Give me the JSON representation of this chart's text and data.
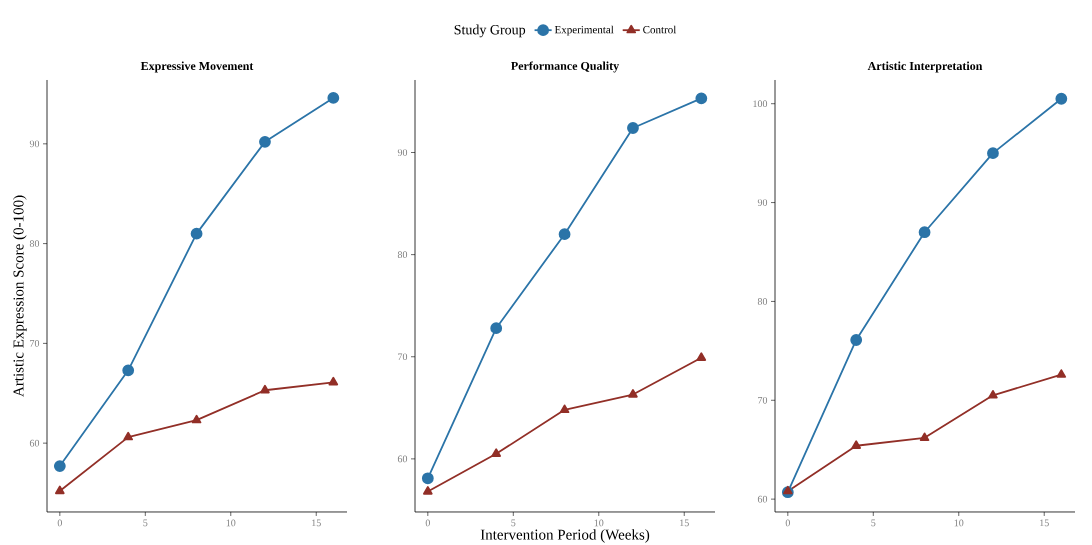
{
  "chart_data": [
    {
      "type": "line",
      "title": "Expressive Movement",
      "ylabel": "Artistic Expression Score (0-100)",
      "x": [
        0,
        4,
        8,
        12,
        16
      ],
      "xlim": [
        -0.75,
        16.8
      ],
      "xticks": [
        0,
        5,
        10,
        15
      ],
      "ylim": [
        53.1,
        96.4
      ],
      "yticks": [
        60,
        70,
        80,
        90
      ],
      "series": [
        {
          "color": "#2b74a8",
          "marker": "circle",
          "values": [
            57.7,
            67.3,
            81.0,
            90.2,
            94.6
          ]
        },
        {
          "color": "#922f27",
          "marker": "triangle",
          "values": [
            55.2,
            60.6,
            62.3,
            65.3,
            66.1
          ]
        }
      ]
    },
    {
      "type": "line",
      "title": "Performance Quality",
      "xlabel": "Intervention Period (Weeks)",
      "legend": "top",
      "legend_title": "Study Group",
      "x": [
        0,
        4,
        8,
        12,
        16
      ],
      "xlim": [
        -0.75,
        16.8
      ],
      "xticks": [
        0,
        5,
        10,
        15
      ],
      "ylim": [
        54.8,
        97.1
      ],
      "yticks": [
        60,
        70,
        80,
        90
      ],
      "series": [
        {
          "name": "Experimental",
          "color": "#2b74a8",
          "marker": "circle",
          "values": [
            58.1,
            72.8,
            82.0,
            92.4,
            95.3
          ]
        },
        {
          "name": "Control",
          "color": "#922f27",
          "marker": "triangle",
          "values": [
            56.8,
            60.5,
            64.8,
            66.3,
            69.9
          ]
        }
      ]
    },
    {
      "type": "line",
      "title": "Artistic Interpretation",
      "x": [
        0,
        4,
        8,
        12,
        16
      ],
      "xlim": [
        -0.75,
        16.8
      ],
      "xticks": [
        0,
        5,
        10,
        15
      ],
      "ylim": [
        58.7,
        102.4
      ],
      "yticks": [
        60,
        70,
        80,
        90,
        100
      ],
      "series": [
        {
          "color": "#2b74a8",
          "marker": "circle",
          "values": [
            60.7,
            76.1,
            87.0,
            95.0,
            100.5
          ]
        },
        {
          "color": "#922f27",
          "marker": "triangle",
          "values": [
            60.8,
            65.4,
            66.2,
            70.5,
            72.6
          ]
        }
      ]
    }
  ]
}
